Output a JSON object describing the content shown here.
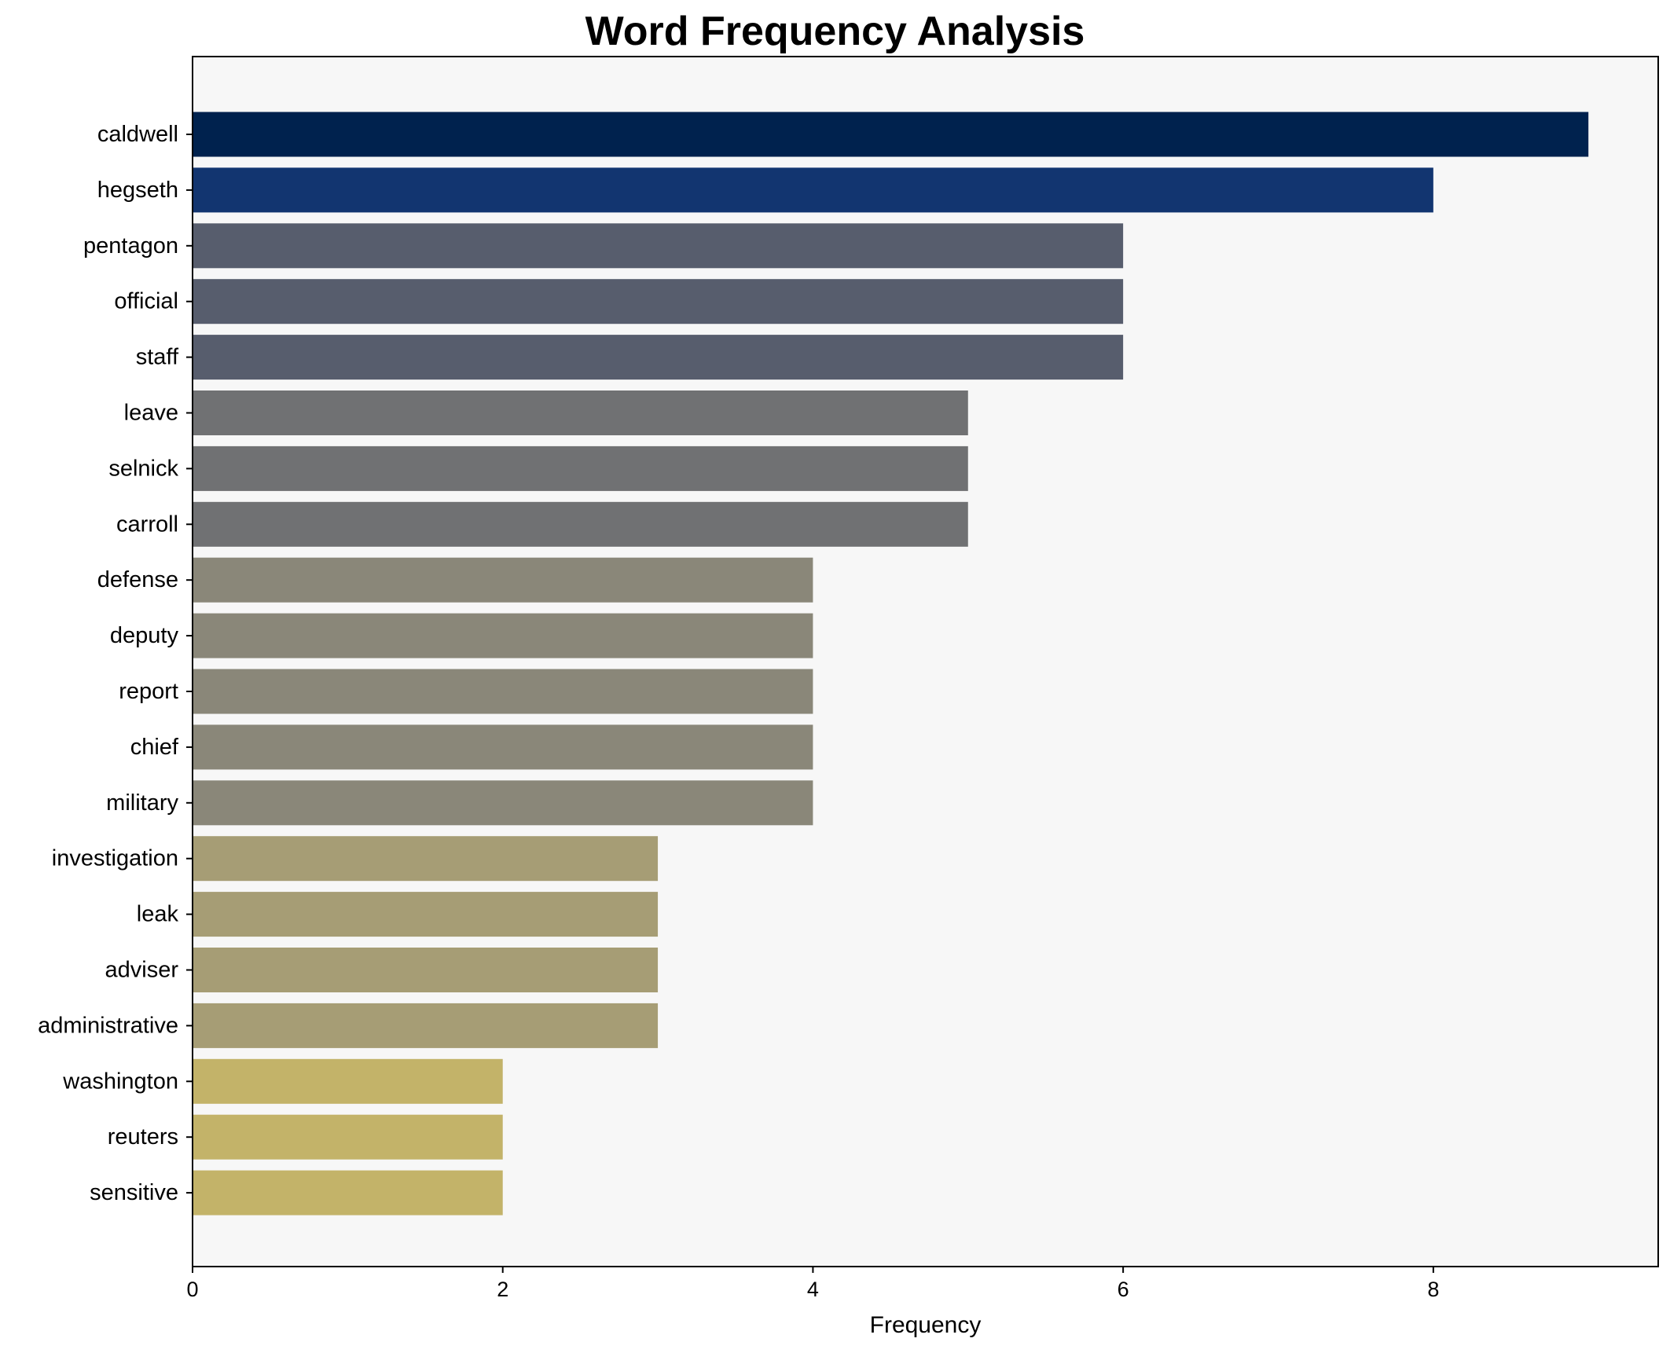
{
  "chart_data": {
    "type": "bar",
    "orientation": "horizontal",
    "title": "Word Frequency Analysis",
    "xlabel": "Frequency",
    "ylabel": "",
    "xlim": [
      0,
      9.45
    ],
    "xticks": [
      0,
      2,
      4,
      6,
      8
    ],
    "grid": false,
    "plot_background": "#f7f7f7",
    "categories": [
      "caldwell",
      "hegseth",
      "pentagon",
      "official",
      "staff",
      "leave",
      "selnick",
      "carroll",
      "defense",
      "deputy",
      "report",
      "chief",
      "military",
      "investigation",
      "leak",
      "adviser",
      "administrative",
      "washington",
      "reuters",
      "sensitive"
    ],
    "values": [
      9,
      8,
      6,
      6,
      6,
      5,
      5,
      5,
      4,
      4,
      4,
      4,
      4,
      3,
      3,
      3,
      3,
      2,
      2,
      2
    ],
    "colors": [
      "#00224e",
      "#123570",
      "#575d6d",
      "#575d6d",
      "#575d6d",
      "#707173",
      "#707173",
      "#707173",
      "#8a8779",
      "#8a8779",
      "#8a8779",
      "#8a8779",
      "#8a8779",
      "#a69d75",
      "#a69d75",
      "#a69d75",
      "#a69d75",
      "#c3b369",
      "#c3b369",
      "#c3b369"
    ]
  }
}
